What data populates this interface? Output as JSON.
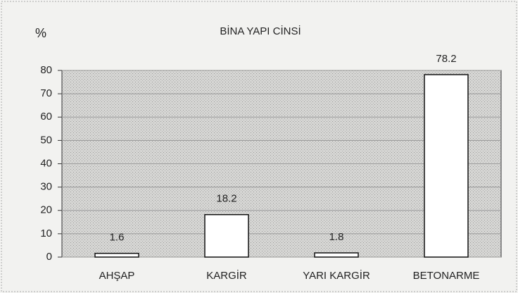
{
  "chart_data": {
    "type": "bar",
    "title": "BİNA YAPI CİNSİ",
    "y_label": "%",
    "categories": [
      "AHŞAP",
      "KARGİR",
      "YARI KARGİR",
      "BETONARME"
    ],
    "values": [
      1.6,
      18.2,
      1.8,
      78.2
    ],
    "color": "#ffffff",
    "ylim": [
      0,
      80
    ],
    "yticks": [
      0,
      10,
      20,
      30,
      40,
      50,
      60,
      70,
      80
    ],
    "grid": true
  }
}
